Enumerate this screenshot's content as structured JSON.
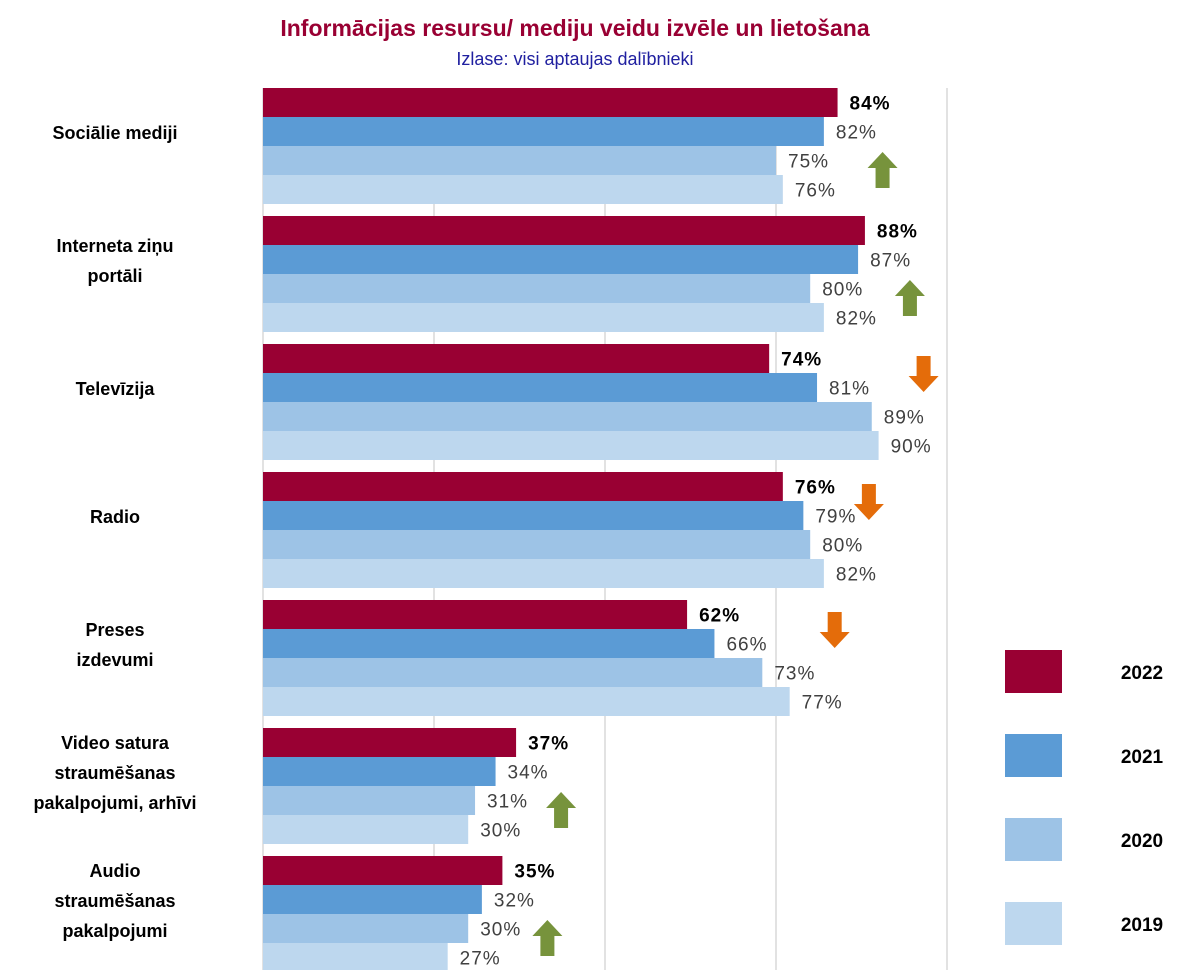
{
  "chart_data": {
    "type": "bar",
    "orientation": "horizontal",
    "title": "Informācijas resursu/ mediju veidu izvēle un lietošana",
    "subtitle": "Izlase: visi aptaujas dalībnieki",
    "categories": [
      "Sociālie mediji",
      "Interneta ziņu\nportāli",
      "Televīzija",
      "Radio",
      "Preses\nizdevumi",
      "Video satura\nstraumēšanas\npakalpojumi, arhīvi",
      "Audio\nstraumēšanas\npakalpojumi"
    ],
    "series": [
      {
        "name": "2022",
        "color": "#990033",
        "values": [
          84,
          88,
          74,
          76,
          62,
          37,
          35
        ],
        "value_labels": [
          "84%",
          "88%",
          "74%",
          "76%",
          "62%",
          "37%",
          "35%"
        ]
      },
      {
        "name": "2021",
        "color": "#5b9bd5",
        "values": [
          82,
          87,
          81,
          79,
          66,
          34,
          32
        ],
        "value_labels": [
          "82%",
          "87%",
          "81%",
          "79%",
          "66%",
          "34%",
          "32%"
        ]
      },
      {
        "name": "2020",
        "color": "#9dc3e6",
        "values": [
          75,
          80,
          89,
          80,
          73,
          31,
          30
        ],
        "value_labels": [
          "75%",
          "80%",
          "89%",
          "80%",
          "73%",
          "31%",
          "30%"
        ]
      },
      {
        "name": "2019",
        "color": "#bdd7ee",
        "values": [
          76,
          82,
          90,
          82,
          77,
          30,
          27
        ],
        "value_labels": [
          "76%",
          "82%",
          "90%",
          "82%",
          "77%",
          "30%",
          "27%"
        ]
      }
    ],
    "trend_arrows": [
      "up",
      "up",
      "down",
      "down",
      "down",
      "up",
      "up"
    ],
    "xlim": [
      0,
      100
    ],
    "xticks": [
      0,
      25,
      50,
      75,
      100
    ],
    "grid": true,
    "legend": "right"
  }
}
